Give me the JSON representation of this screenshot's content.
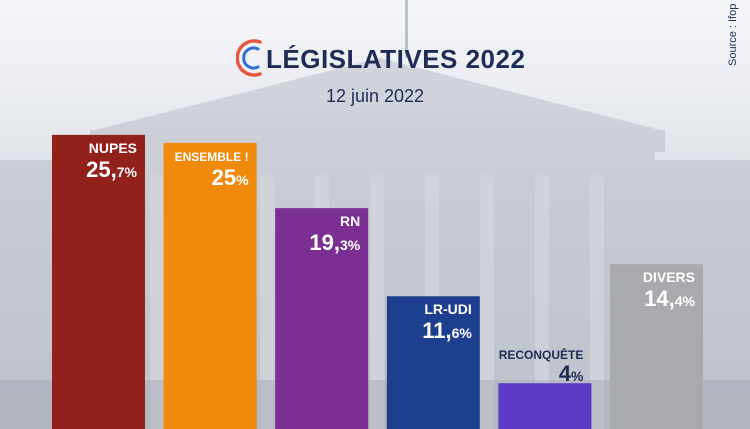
{
  "header": {
    "title": "LÉGISLATIVES 2022",
    "subtitle": "12 juin 2022",
    "source": "Source : Ifop"
  },
  "colors": {
    "logo_arc_main": "#e8553f",
    "logo_arc_inner": "#2f6fd1",
    "title": "#1f2d55",
    "label_dark": "#1f2d55"
  },
  "chart_data": {
    "type": "bar",
    "title": "LÉGISLATIVES 2022",
    "subtitle": "12 juin 2022",
    "xlabel": "",
    "ylabel": "",
    "grid": false,
    "legend": "none",
    "ylim": [
      0,
      27
    ],
    "categories": [
      "NUPES",
      "ENSEMBLE !",
      "RN",
      "LR-UDI",
      "RECONQUÊTE",
      "DIVERS"
    ],
    "values": [
      25.7,
      25,
      19.3,
      11.6,
      4,
      14.4
    ],
    "labels": [
      {
        "int": "25,",
        "dec": "7%"
      },
      {
        "int": "25",
        "dec": "%"
      },
      {
        "int": "19,",
        "dec": "3%"
      },
      {
        "int": "11,",
        "dec": "6%"
      },
      {
        "int": "4",
        "dec": "%"
      },
      {
        "int": "14,",
        "dec": "4%"
      }
    ],
    "colors": [
      "#92201b",
      "#f08a0c",
      "#7c2f93",
      "#1e3f8f",
      "#5b3bc8",
      "#a9aaad"
    ]
  }
}
